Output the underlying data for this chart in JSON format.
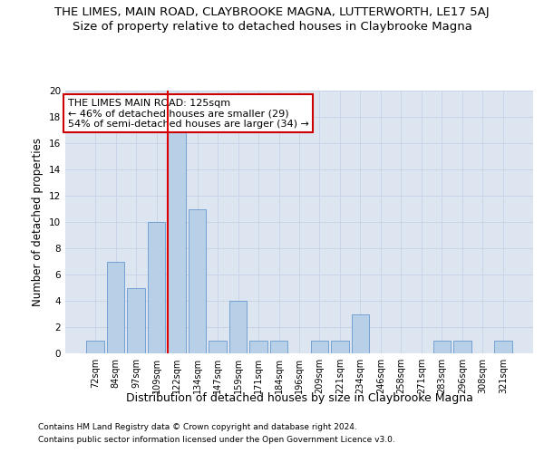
{
  "title": "THE LIMES, MAIN ROAD, CLAYBROOKE MAGNA, LUTTERWORTH, LE17 5AJ",
  "subtitle": "Size of property relative to detached houses in Claybrooke Magna",
  "xlabel": "Distribution of detached houses by size in Claybrooke Magna",
  "ylabel": "Number of detached properties",
  "categories": [
    "72sqm",
    "84sqm",
    "97sqm",
    "109sqm",
    "122sqm",
    "134sqm",
    "147sqm",
    "159sqm",
    "171sqm",
    "184sqm",
    "196sqm",
    "209sqm",
    "221sqm",
    "234sqm",
    "246sqm",
    "258sqm",
    "271sqm",
    "283sqm",
    "296sqm",
    "308sqm",
    "321sqm"
  ],
  "values": [
    1,
    7,
    5,
    10,
    17,
    11,
    1,
    4,
    1,
    1,
    0,
    1,
    1,
    3,
    0,
    0,
    0,
    1,
    1,
    0,
    1
  ],
  "bar_color": "#b8cfe8",
  "bar_edge_color": "#6699cc",
  "highlight_color": "#dd0000",
  "highlight_index": 4,
  "annotation_line1": "THE LIMES MAIN ROAD: 125sqm",
  "annotation_line2": "← 46% of detached houses are smaller (29)",
  "annotation_line3": "54% of semi-detached houses are larger (34) →",
  "annotation_box_color": "#ffffff",
  "annotation_box_edge": "#cc0000",
  "ylim": [
    0,
    20
  ],
  "yticks": [
    0,
    2,
    4,
    6,
    8,
    10,
    12,
    14,
    16,
    18,
    20
  ],
  "grid_color": "#c8d4e8",
  "bg_color": "#dde5f0",
  "footer1": "Contains HM Land Registry data © Crown copyright and database right 2024.",
  "footer2": "Contains public sector information licensed under the Open Government Licence v3.0.",
  "title_fontsize": 9.5,
  "subtitle_fontsize": 9.5,
  "tick_fontsize": 7,
  "ylabel_fontsize": 8.5,
  "xlabel_fontsize": 9,
  "annotation_fontsize": 8,
  "footer_fontsize": 6.5
}
